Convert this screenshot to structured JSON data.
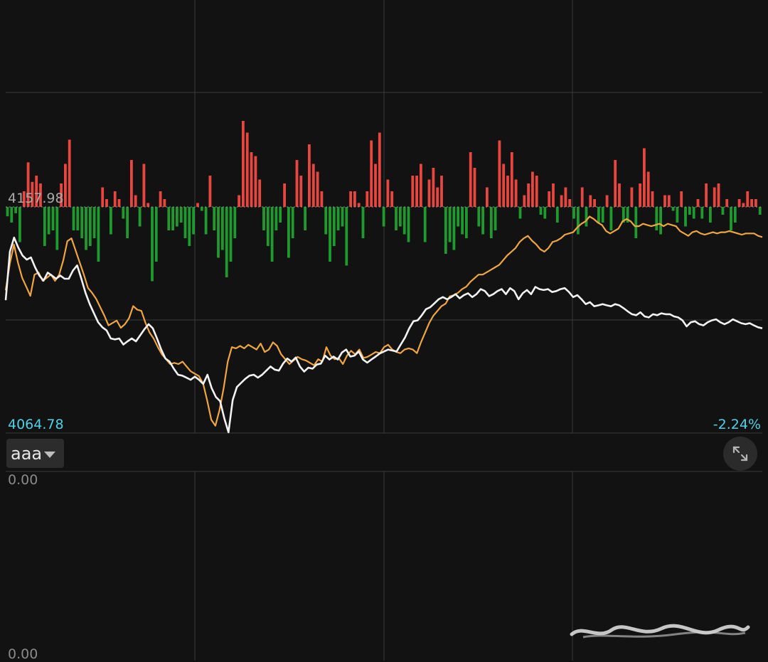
{
  "price_panel": {
    "max_label": "4157.98",
    "min_label": "4064.78",
    "change_label": "-2.24%"
  },
  "indicator_panel": {
    "selector_label": "aaa",
    "max_label": "0.00",
    "min_label": "0.00"
  },
  "icons": {
    "indicator_dropdown": "triangle-down-icon",
    "expand": "expand-arrows-icon"
  },
  "colors": {
    "background": "#121212",
    "grid": "#3a3a3a",
    "price_line": "#f2f2f2",
    "average_line": "#f0a640",
    "bar_up": "#e8463f",
    "bar_down": "#1f9a2e",
    "axis_value": "#4fd1e5"
  },
  "chart_data": {
    "type": "line",
    "ylim": [
      4064.78,
      4157.98
    ],
    "grid": true,
    "series": [
      {
        "key": "price",
        "values": [
          4119.4,
          4139.5,
          4145.3,
          4141.2,
          4137.9,
          4136.2,
          4137.1,
          4133.0,
          4129.6,
          4127.5,
          4130.8,
          4129.6,
          4128.3,
          4129.6,
          4128.3,
          4128.3,
          4131.7,
          4133.8,
          4128.3,
          4122.4,
          4117.8,
          4114.0,
          4110.3,
          4108.2,
          4106.9,
          4103.6,
          4103.2,
          4103.6,
          4101.1,
          4102.4,
          4103.6,
          4102.4,
          4104.9,
          4107.4,
          4109.5,
          4107.8,
          4103.6,
          4099.0,
          4095.3,
          4094.0,
          4091.1,
          4088.6,
          4088.2,
          4087.4,
          4086.5,
          4087.8,
          4086.5,
          4084.8,
          4088.6,
          4083.1,
          4079.4,
          4077.7,
          4070.6,
          4064.8,
          4078.1,
          4083.5,
          4085.2,
          4086.9,
          4088.2,
          4088.6,
          4087.4,
          4088.6,
          4090.3,
          4092.0,
          4090.7,
          4090.3,
          4093.2,
          4095.3,
          4094.0,
          4095.7,
          4092.0,
          4089.9,
          4091.5,
          4091.1,
          4092.8,
          4093.2,
          4096.5,
          4094.9,
          4096.1,
          4094.9,
          4097.8,
          4099.0,
          4096.1,
          4096.5,
          4098.2,
          4094.9,
          4093.6,
          4094.9,
          4096.1,
          4097.4,
          4098.2,
          4099.0,
          4098.6,
          4098.2,
          4101.1,
          4104.0,
          4107.8,
          4110.7,
          4111.1,
          4113.2,
          4115.7,
          4116.5,
          4118.1,
          4119.8,
          4120.7,
          4119.8,
          4120.7,
          4121.9,
          4120.2,
          4121.5,
          4122.3,
          4120.7,
          4121.9,
          4124.0,
          4123.2,
          4121.1,
          4121.9,
          4123.2,
          4124.0,
          4121.9,
          4124.4,
          4123.2,
          4119.8,
          4122.3,
          4123.6,
          4121.9,
          4124.9,
          4124.0,
          4123.6,
          4124.0,
          4122.8,
          4123.2,
          4124.0,
          4124.4,
          4122.8,
          4120.7,
          4121.5,
          4119.8,
          4117.8,
          4118.6,
          4116.9,
          4117.3,
          4117.8,
          4117.3,
          4116.9,
          4117.8,
          4117.3,
          4116.1,
          4114.8,
          4113.6,
          4113.2,
          4114.4,
          4112.7,
          4112.3,
          4113.6,
          4113.2,
          4114.0,
          4113.6,
          4113.6,
          4112.7,
          4112.3,
          4111.1,
          4108.6,
          4110.3,
          4110.7,
          4109.5,
          4109.0,
          4110.3,
          4111.1,
          4111.5,
          4110.3,
          4109.5,
          4110.3,
          4111.5,
          4110.7,
          4109.9,
          4109.5,
          4109.9,
          4109.0,
          4108.2,
          4107.8
        ]
      },
      {
        "key": "average",
        "values": [
          4123.5,
          4134.5,
          4142.4,
          4134.9,
          4128.7,
          4125.0,
          4121.2,
          4130.0,
          4130.8,
          4127.4,
          4128.7,
          4130.0,
          4127.4,
          4130.0,
          4135.9,
          4143.8,
          4145.0,
          4140.0,
          4135.0,
          4130.0,
          4124.5,
          4122.5,
          4120.0,
          4116.5,
          4113.0,
          4109.0,
          4110.0,
          4111.0,
          4108.0,
          4109.5,
          4112.0,
          4117.0,
          4115.5,
          4115.0,
          4110.0,
          4106.0,
          4103.5,
          4100.0,
          4097.0,
          4095.0,
          4093.0,
          4093.5,
          4093.0,
          4094.0,
          4092.0,
          4090.0,
          4089.0,
          4088.0,
          4085.0,
          4078.0,
          4070.0,
          4067.5,
          4074.0,
          4083.0,
          4094.0,
          4100.0,
          4099.5,
          4100.5,
          4099.5,
          4101.0,
          4100.0,
          4099.0,
          4101.5,
          4098.0,
          4099.0,
          4102.0,
          4100.5,
          4097.0,
          4095.0,
          4093.0,
          4094.5,
          4096.0,
          4095.0,
          4094.5,
          4093.5,
          4092.5,
          4095.0,
          4094.0,
          4100.0,
          4096.5,
          4095.0,
          4095.5,
          4093.0,
          4096.5,
          4098.5,
          4097.0,
          4099.0,
          4095.5,
          4096.0,
          4097.0,
          4098.0,
          4097.5,
          4100.0,
          4101.0,
          4099.0,
          4098.0,
          4097.5,
          4099.0,
          4099.5,
          4099.0,
          4097.5,
          4102.0,
          4106.0,
          4110.0,
          4113.0,
          4115.0,
          4117.0,
          4118.0,
          4121.0,
          4121.5,
          4122.5,
          4124.0,
          4125.0,
          4127.0,
          4128.5,
          4130.0,
          4130.0,
          4131.0,
          4132.0,
          4133.0,
          4134.0,
          4136.0,
          4138.0,
          4139.5,
          4141.0,
          4143.5,
          4145.0,
          4146.0,
          4144.0,
          4142.5,
          4140.5,
          4139.5,
          4141.0,
          4143.5,
          4144.0,
          4145.0,
          4146.5,
          4147.0,
          4147.5,
          4149.5,
          4151.0,
          4152.0,
          4154.0,
          4153.0,
          4151.5,
          4150.5,
          4148.0,
          4147.0,
          4148.0,
          4149.0,
          4152.0,
          4153.0,
          4152.0,
          4150.0,
          4150.0,
          4151.0,
          4150.5,
          4150.0,
          4150.5,
          4151.0,
          4150.0,
          4151.0,
          4150.5,
          4150.0,
          4148.0,
          4147.0,
          4146.0,
          4147.5,
          4148.0,
          4147.0,
          4146.5,
          4147.0,
          4147.5,
          4147.0,
          4147.5,
          4147.5,
          4148.0,
          4147.5,
          4147.0,
          4146.5,
          4147.0,
          4147.0,
          4147.0,
          4146.0,
          4145.5
        ]
      }
    ],
    "volume_bars": [
      -0.12,
      -0.2,
      -0.08,
      -0.45,
      0.2,
      0.57,
      0.32,
      0.4,
      0.3,
      -0.5,
      -0.35,
      -0.3,
      -0.55,
      0.3,
      0.55,
      0.86,
      -0.3,
      -0.3,
      -0.4,
      -0.55,
      -0.5,
      -0.4,
      -0.7,
      0.25,
      0.1,
      -0.35,
      0.2,
      0.1,
      -0.15,
      -0.4,
      0.6,
      0.15,
      -0.25,
      0.55,
      0.05,
      -0.95,
      -0.7,
      0.2,
      0.1,
      -0.3,
      -0.3,
      -0.25,
      -0.2,
      -0.4,
      -0.5,
      -0.35,
      0.05,
      -0.05,
      -0.35,
      0.4,
      -0.3,
      -0.65,
      -0.55,
      -0.9,
      -0.7,
      -0.4,
      0.15,
      1.1,
      0.95,
      0.7,
      0.65,
      0.35,
      -0.3,
      -0.5,
      -0.7,
      -0.3,
      -0.2,
      0.3,
      -0.65,
      -0.4,
      0.6,
      0.4,
      -0.3,
      0.8,
      0.55,
      0.45,
      0.2,
      -0.35,
      -0.7,
      -0.5,
      -0.3,
      -0.25,
      -0.75,
      0.2,
      0.2,
      0.05,
      -0.4,
      0.2,
      0.85,
      0.55,
      0.95,
      -0.25,
      0.35,
      0.2,
      -0.3,
      -0.25,
      -0.35,
      -0.45,
      0.4,
      0.4,
      0.55,
      -0.45,
      0.35,
      0.5,
      0.25,
      0.4,
      -0.6,
      -0.45,
      -0.55,
      -0.25,
      -0.35,
      -0.4,
      0.7,
      0.5,
      -0.25,
      -0.35,
      0.25,
      -0.4,
      -0.3,
      0.85,
      0.55,
      0.4,
      0.7,
      0.35,
      -0.15,
      0.15,
      0.3,
      0.45,
      0.4,
      -0.1,
      -0.15,
      0.2,
      0.3,
      -0.2,
      0.15,
      0.25,
      0.1,
      -0.15,
      -0.35,
      0.25,
      -0.25,
      0.15,
      0.1,
      -0.2,
      -0.2,
      0.15,
      -0.3,
      0.6,
      0.3,
      -0.2,
      -0.2,
      0.25,
      -0.4,
      0.3,
      0.75,
      0.45,
      0.2,
      -0.3,
      -0.35,
      0.15,
      0.15,
      -0.05,
      -0.2,
      0.2,
      -0.25,
      -0.1,
      -0.15,
      0.1,
      -0.15,
      0.3,
      -0.2,
      0.25,
      0.3,
      -0.1,
      0.1,
      -0.3,
      -0.2,
      0.1,
      0.05,
      0.2,
      0.1,
      0.1,
      -0.1
    ]
  }
}
